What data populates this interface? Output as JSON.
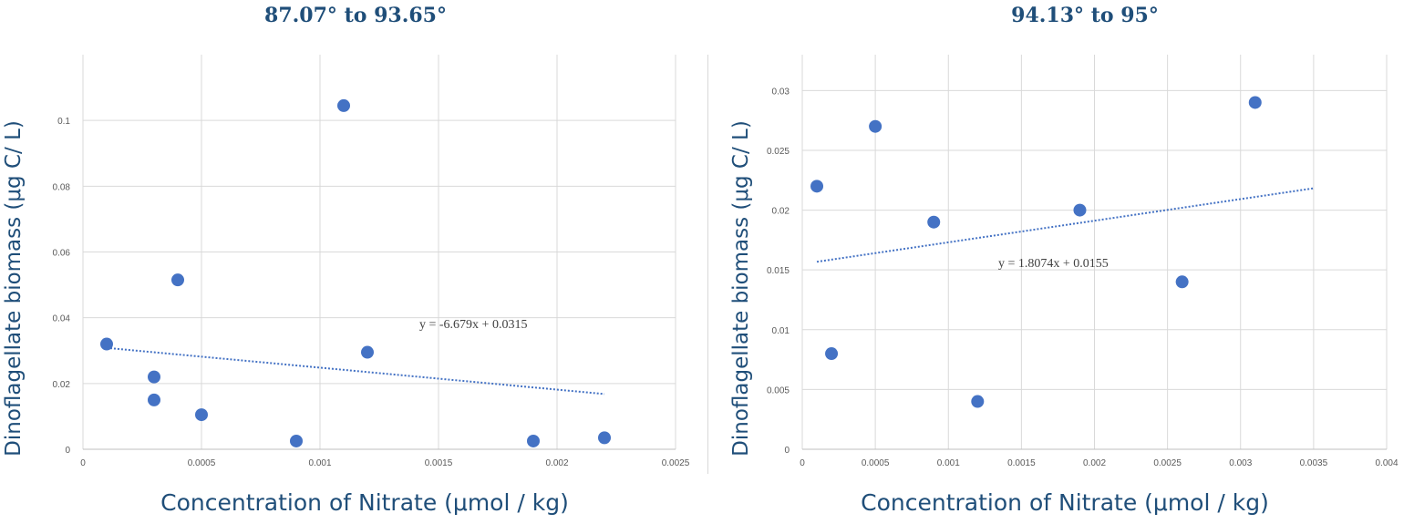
{
  "chart_data": [
    {
      "type": "scatter",
      "title": "87.07° to 93.65°",
      "xlabel": "Concentration of Nitrate (μmol / kg)",
      "ylabel": "Dinoflagellate biomass (μg C/ L)",
      "xlim": [
        0,
        0.0025
      ],
      "ylim": [
        0,
        0.12
      ],
      "xticks": [
        "0",
        "0.0005",
        "0.001",
        "0.0015",
        "0.002",
        "0.0025"
      ],
      "yticks": [
        "0",
        "0.02",
        "0.04",
        "0.06",
        "0.08",
        "0.1"
      ],
      "points": [
        {
          "x": 0.0001,
          "y": 0.032
        },
        {
          "x": 0.0003,
          "y": 0.022
        },
        {
          "x": 0.0003,
          "y": 0.015
        },
        {
          "x": 0.0004,
          "y": 0.0515
        },
        {
          "x": 0.0005,
          "y": 0.0105
        },
        {
          "x": 0.0009,
          "y": 0.0025
        },
        {
          "x": 0.0011,
          "y": 0.1045
        },
        {
          "x": 0.0012,
          "y": 0.0295
        },
        {
          "x": 0.0019,
          "y": 0.0025
        },
        {
          "x": 0.0022,
          "y": 0.0035
        }
      ],
      "trendline": {
        "slope": -6.679,
        "intercept": 0.0315,
        "x_range": [
          0.0001,
          0.0022
        ],
        "label": "y = -6.679x + 0.0315"
      },
      "grid": true,
      "point_color": "#4472c4"
    },
    {
      "type": "scatter",
      "title": "94.13° to 95°",
      "xlabel": "Concentration of Nitrate (μmol / kg)",
      "ylabel": "Dinoflagellate biomass (μg C/ L)",
      "xlim": [
        0,
        0.004
      ],
      "ylim": [
        0,
        0.033
      ],
      "xticks": [
        "0",
        "0.0005",
        "0.001",
        "0.0015",
        "0.002",
        "0.0025",
        "0.003",
        "0.0035",
        "0.004"
      ],
      "yticks": [
        "0",
        "0.005",
        "0.01",
        "0.015",
        "0.02",
        "0.025",
        "0.03"
      ],
      "points": [
        {
          "x": 0.0001,
          "y": 0.022
        },
        {
          "x": 0.0002,
          "y": 0.008
        },
        {
          "x": 0.0005,
          "y": 0.027
        },
        {
          "x": 0.0009,
          "y": 0.019
        },
        {
          "x": 0.0012,
          "y": 0.004
        },
        {
          "x": 0.0019,
          "y": 0.02
        },
        {
          "x": 0.0026,
          "y": 0.014
        },
        {
          "x": 0.0031,
          "y": 0.029
        }
      ],
      "trendline": {
        "slope": 1.8074,
        "intercept": 0.0155,
        "x_range": [
          0.0001,
          0.0035
        ],
        "label": "y = 1.8074x + 0.0155"
      },
      "grid": true,
      "point_color": "#4472c4"
    }
  ]
}
